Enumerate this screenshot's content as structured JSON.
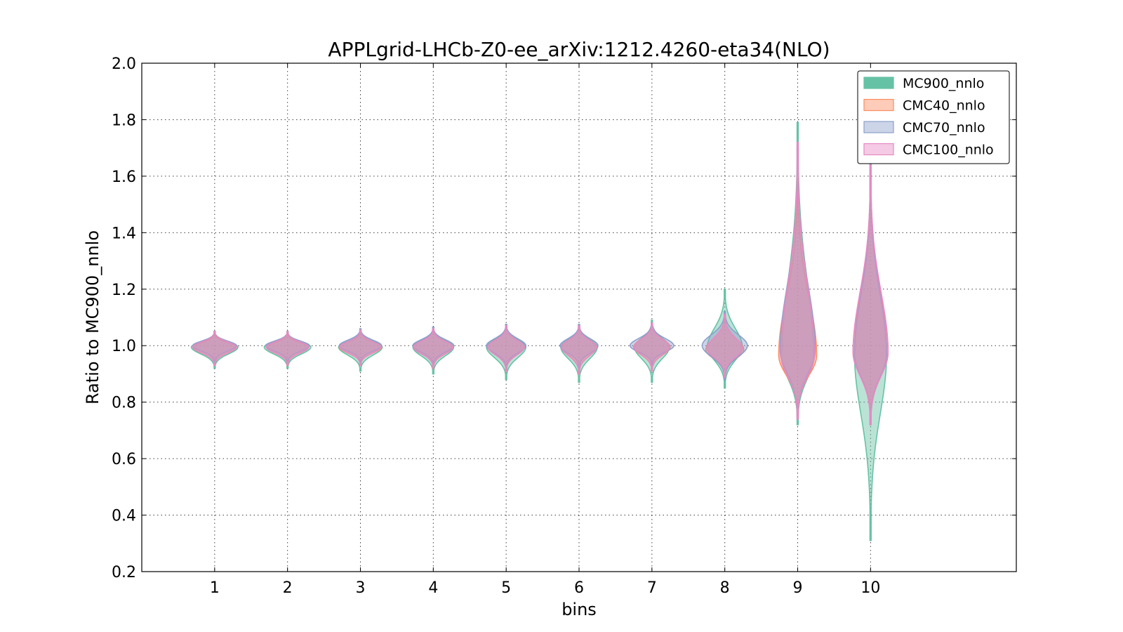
{
  "chart_data": {
    "type": "violin",
    "title": "APPLgrid-LHCb-Z0-ee_arXiv:1212.4260-eta34(NLO)",
    "xlabel": "bins",
    "ylabel": "Ratio to MC900_nnlo",
    "xlim": [
      0,
      12
    ],
    "ylim": [
      0.2,
      2.0
    ],
    "x_ticks": [
      "1",
      "2",
      "3",
      "4",
      "5",
      "6",
      "7",
      "8",
      "9",
      "10"
    ],
    "y_ticks": [
      "0.2",
      "0.4",
      "0.6",
      "0.8",
      "1.0",
      "1.2",
      "1.4",
      "1.6",
      "1.8",
      "2.0"
    ],
    "grid": true,
    "legend_position": "top-right",
    "series": [
      {
        "name": "MC900_nnlo",
        "color": "#66c2a5",
        "violins": [
          {
            "x": 1,
            "min": 0.92,
            "max": 1.05,
            "center": 0.995,
            "halfwidth": 0.32
          },
          {
            "x": 2,
            "min": 0.92,
            "max": 1.05,
            "center": 0.995,
            "halfwidth": 0.32
          },
          {
            "x": 3,
            "min": 0.91,
            "max": 1.055,
            "center": 0.995,
            "halfwidth": 0.3
          },
          {
            "x": 4,
            "min": 0.9,
            "max": 1.065,
            "center": 0.995,
            "halfwidth": 0.28
          },
          {
            "x": 5,
            "min": 0.88,
            "max": 1.075,
            "center": 0.995,
            "halfwidth": 0.27
          },
          {
            "x": 6,
            "min": 0.87,
            "max": 1.075,
            "center": 0.995,
            "halfwidth": 0.25
          },
          {
            "x": 7,
            "min": 0.87,
            "max": 1.09,
            "center": 0.995,
            "halfwidth": 0.24
          },
          {
            "x": 8,
            "min": 0.85,
            "max": 1.2,
            "center": 0.995,
            "halfwidth": 0.24
          },
          {
            "x": 9,
            "min": 0.72,
            "max": 1.79,
            "center": 0.96,
            "halfwidth": 0.22
          },
          {
            "x": 10,
            "min": 0.31,
            "max": 1.65,
            "center": 0.97,
            "halfwidth": 0.22
          }
        ]
      },
      {
        "name": "CMC40_nnlo",
        "color": "#fc8d62",
        "violins": [
          {
            "x": 1,
            "min": 0.93,
            "max": 1.045,
            "center": 0.995,
            "halfwidth": 0.3
          },
          {
            "x": 2,
            "min": 0.93,
            "max": 1.045,
            "center": 0.995,
            "halfwidth": 0.29
          },
          {
            "x": 3,
            "min": 0.93,
            "max": 1.05,
            "center": 0.995,
            "halfwidth": 0.29
          },
          {
            "x": 4,
            "min": 0.92,
            "max": 1.06,
            "center": 0.995,
            "halfwidth": 0.27
          },
          {
            "x": 5,
            "min": 0.91,
            "max": 1.07,
            "center": 0.995,
            "halfwidth": 0.25
          },
          {
            "x": 6,
            "min": 0.9,
            "max": 1.07,
            "center": 0.995,
            "halfwidth": 0.24
          },
          {
            "x": 7,
            "min": 0.91,
            "max": 1.08,
            "center": 0.995,
            "halfwidth": 0.25
          },
          {
            "x": 8,
            "min": 0.89,
            "max": 1.11,
            "center": 0.985,
            "halfwidth": 0.26
          },
          {
            "x": 9,
            "min": 0.75,
            "max": 1.6,
            "center": 0.965,
            "halfwidth": 0.26
          },
          {
            "x": 10,
            "min": 0.73,
            "max": 1.6,
            "center": 0.975,
            "halfwidth": 0.24
          }
        ]
      },
      {
        "name": "CMC70_nnlo",
        "color": "#8da0cb",
        "violins": [
          {
            "x": 1,
            "min": 0.94,
            "max": 1.05,
            "center": 1.0,
            "halfwidth": 0.3
          },
          {
            "x": 2,
            "min": 0.94,
            "max": 1.05,
            "center": 1.0,
            "halfwidth": 0.3
          },
          {
            "x": 3,
            "min": 0.94,
            "max": 1.06,
            "center": 1.0,
            "halfwidth": 0.29
          },
          {
            "x": 4,
            "min": 0.93,
            "max": 1.065,
            "center": 1.0,
            "halfwidth": 0.28
          },
          {
            "x": 5,
            "min": 0.92,
            "max": 1.075,
            "center": 1.0,
            "halfwidth": 0.27
          },
          {
            "x": 6,
            "min": 0.92,
            "max": 1.075,
            "center": 1.0,
            "halfwidth": 0.26
          },
          {
            "x": 7,
            "min": 0.93,
            "max": 1.08,
            "center": 1.0,
            "halfwidth": 0.3
          },
          {
            "x": 8,
            "min": 0.88,
            "max": 1.12,
            "center": 1.0,
            "halfwidth": 0.31
          },
          {
            "x": 9,
            "min": 0.74,
            "max": 1.7,
            "center": 0.98,
            "halfwidth": 0.24
          },
          {
            "x": 10,
            "min": 0.72,
            "max": 1.62,
            "center": 0.97,
            "halfwidth": 0.22
          }
        ]
      },
      {
        "name": "CMC100_nnlo",
        "color": "#e78ac3",
        "violins": [
          {
            "x": 1,
            "min": 0.93,
            "max": 1.05,
            "center": 0.995,
            "halfwidth": 0.3
          },
          {
            "x": 2,
            "min": 0.93,
            "max": 1.05,
            "center": 0.995,
            "halfwidth": 0.29
          },
          {
            "x": 3,
            "min": 0.93,
            "max": 1.055,
            "center": 0.995,
            "halfwidth": 0.28
          },
          {
            "x": 4,
            "min": 0.92,
            "max": 1.06,
            "center": 0.995,
            "halfwidth": 0.27
          },
          {
            "x": 5,
            "min": 0.91,
            "max": 1.07,
            "center": 0.995,
            "halfwidth": 0.25
          },
          {
            "x": 6,
            "min": 0.9,
            "max": 1.07,
            "center": 0.995,
            "halfwidth": 0.24
          },
          {
            "x": 7,
            "min": 0.91,
            "max": 1.08,
            "center": 0.995,
            "halfwidth": 0.24
          },
          {
            "x": 8,
            "min": 0.89,
            "max": 1.11,
            "center": 0.99,
            "halfwidth": 0.24
          },
          {
            "x": 9,
            "min": 0.74,
            "max": 1.72,
            "center": 0.965,
            "halfwidth": 0.23
          },
          {
            "x": 10,
            "min": 0.72,
            "max": 1.64,
            "center": 0.975,
            "halfwidth": 0.24
          }
        ]
      }
    ]
  }
}
